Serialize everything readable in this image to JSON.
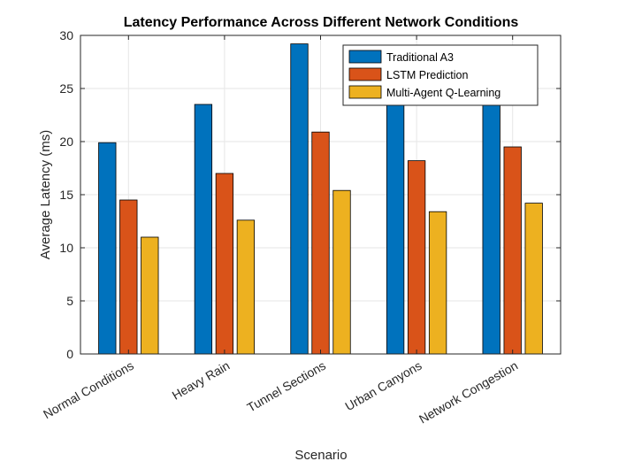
{
  "chart_data": {
    "type": "bar",
    "title": "Latency Performance Across Different Network Conditions",
    "xlabel": "Scenario",
    "ylabel": "Average Latency (ms)",
    "ylim": [
      0,
      30
    ],
    "yticks": [
      0,
      5,
      10,
      15,
      20,
      25,
      30
    ],
    "grid": true,
    "legend_position": "top-right",
    "categories": [
      "Normal Conditions",
      "Heavy Rain",
      "Tunnel Sections",
      "Urban Canyons",
      "Network Congestion"
    ],
    "series": [
      {
        "name": "Traditional A3",
        "color": "#0072BD",
        "values": [
          19.9,
          23.5,
          29.2,
          24.0,
          24.0
        ]
      },
      {
        "name": "LSTM Prediction",
        "color": "#D95319",
        "values": [
          14.5,
          17.0,
          20.9,
          18.2,
          19.5
        ]
      },
      {
        "name": "Multi-Agent Q-Learning",
        "color": "#EDB120",
        "values": [
          11.0,
          12.6,
          15.4,
          13.4,
          14.2
        ]
      }
    ]
  }
}
